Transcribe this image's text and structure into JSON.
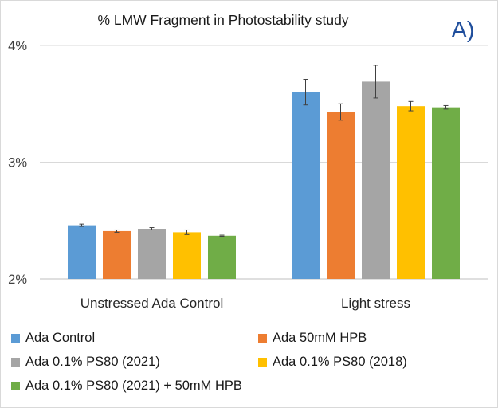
{
  "chart_data": {
    "type": "bar",
    "title": "% LMW Fragment in Photostability study",
    "panel_label": "A)",
    "categories": [
      "Unstressed Ada Control",
      "Light stress"
    ],
    "y_ticks": [
      "2%",
      "3%",
      "4%"
    ],
    "ylim": [
      2,
      4
    ],
    "xlabel": "",
    "ylabel": "",
    "grid": true,
    "legend_position": "bottom",
    "series": [
      {
        "name": "Ada Control",
        "color": "#5b9bd5",
        "values": [
          2.46,
          3.6
        ],
        "errors": [
          0.01,
          0.11
        ]
      },
      {
        "name": "Ada 50mM HPB",
        "color": "#ed7d31",
        "values": [
          2.41,
          3.43
        ],
        "errors": [
          0.01,
          0.07
        ]
      },
      {
        "name": "Ada 0.1% PS80 (2021)",
        "color": "#a5a5a5",
        "values": [
          2.43,
          3.69
        ],
        "errors": [
          0.01,
          0.14
        ]
      },
      {
        "name": "Ada 0.1% PS80 (2018)",
        "color": "#ffc000",
        "values": [
          2.4,
          3.48
        ],
        "errors": [
          0.02,
          0.04
        ]
      },
      {
        "name": "Ada 0.1% PS80 (2021) + 50mM HPB",
        "color": "#70ad47",
        "values": [
          2.37,
          3.47
        ],
        "errors": [
          0.005,
          0.015
        ]
      }
    ]
  }
}
